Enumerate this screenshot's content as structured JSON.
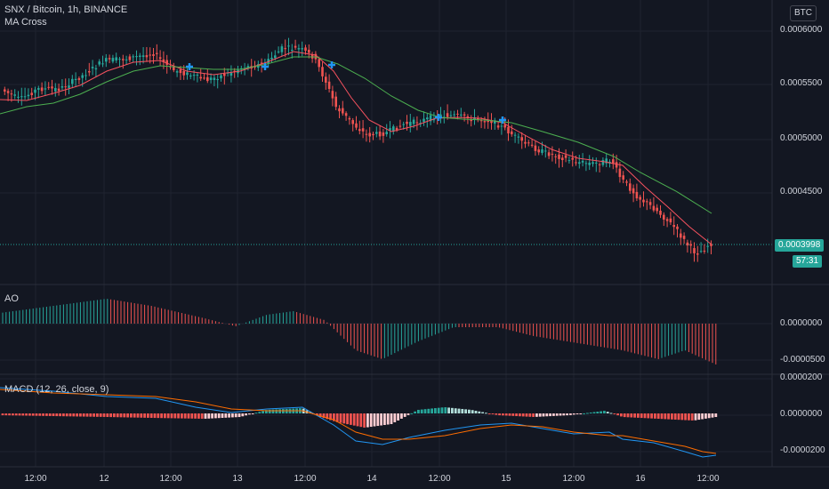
{
  "header": {
    "symbol": "SNX / Bitcoin, 1h, BINANCE",
    "indicator": "MA Cross",
    "currency": "BTC"
  },
  "price": {
    "last": "0.0003998",
    "countdown": "57:31",
    "axis_labels": [
      "0.0006000",
      "0.0005500",
      "0.0005000",
      "0.0004500"
    ]
  },
  "ao": {
    "title": "AO",
    "axis_labels": [
      "0.0000000",
      "-0.0000500"
    ]
  },
  "macd": {
    "title": "MACD (12, 26, close, 9)",
    "axis_labels": [
      "0.0000200",
      "0.0000000",
      "-0.0000200"
    ]
  },
  "time_axis": [
    "12:00",
    "12",
    "12:00",
    "13",
    "12:00",
    "14",
    "12:00",
    "15",
    "12:00",
    "16",
    "12:00"
  ],
  "colors": {
    "background": "#131722",
    "up": "#26a69a",
    "down": "#ef5350",
    "ma_fast": "#f7525f",
    "ma_slow": "#4caf50",
    "cross_marker": "#2196f3",
    "macd_line": "#2196f3",
    "signal_line": "#ff6d00"
  }
}
